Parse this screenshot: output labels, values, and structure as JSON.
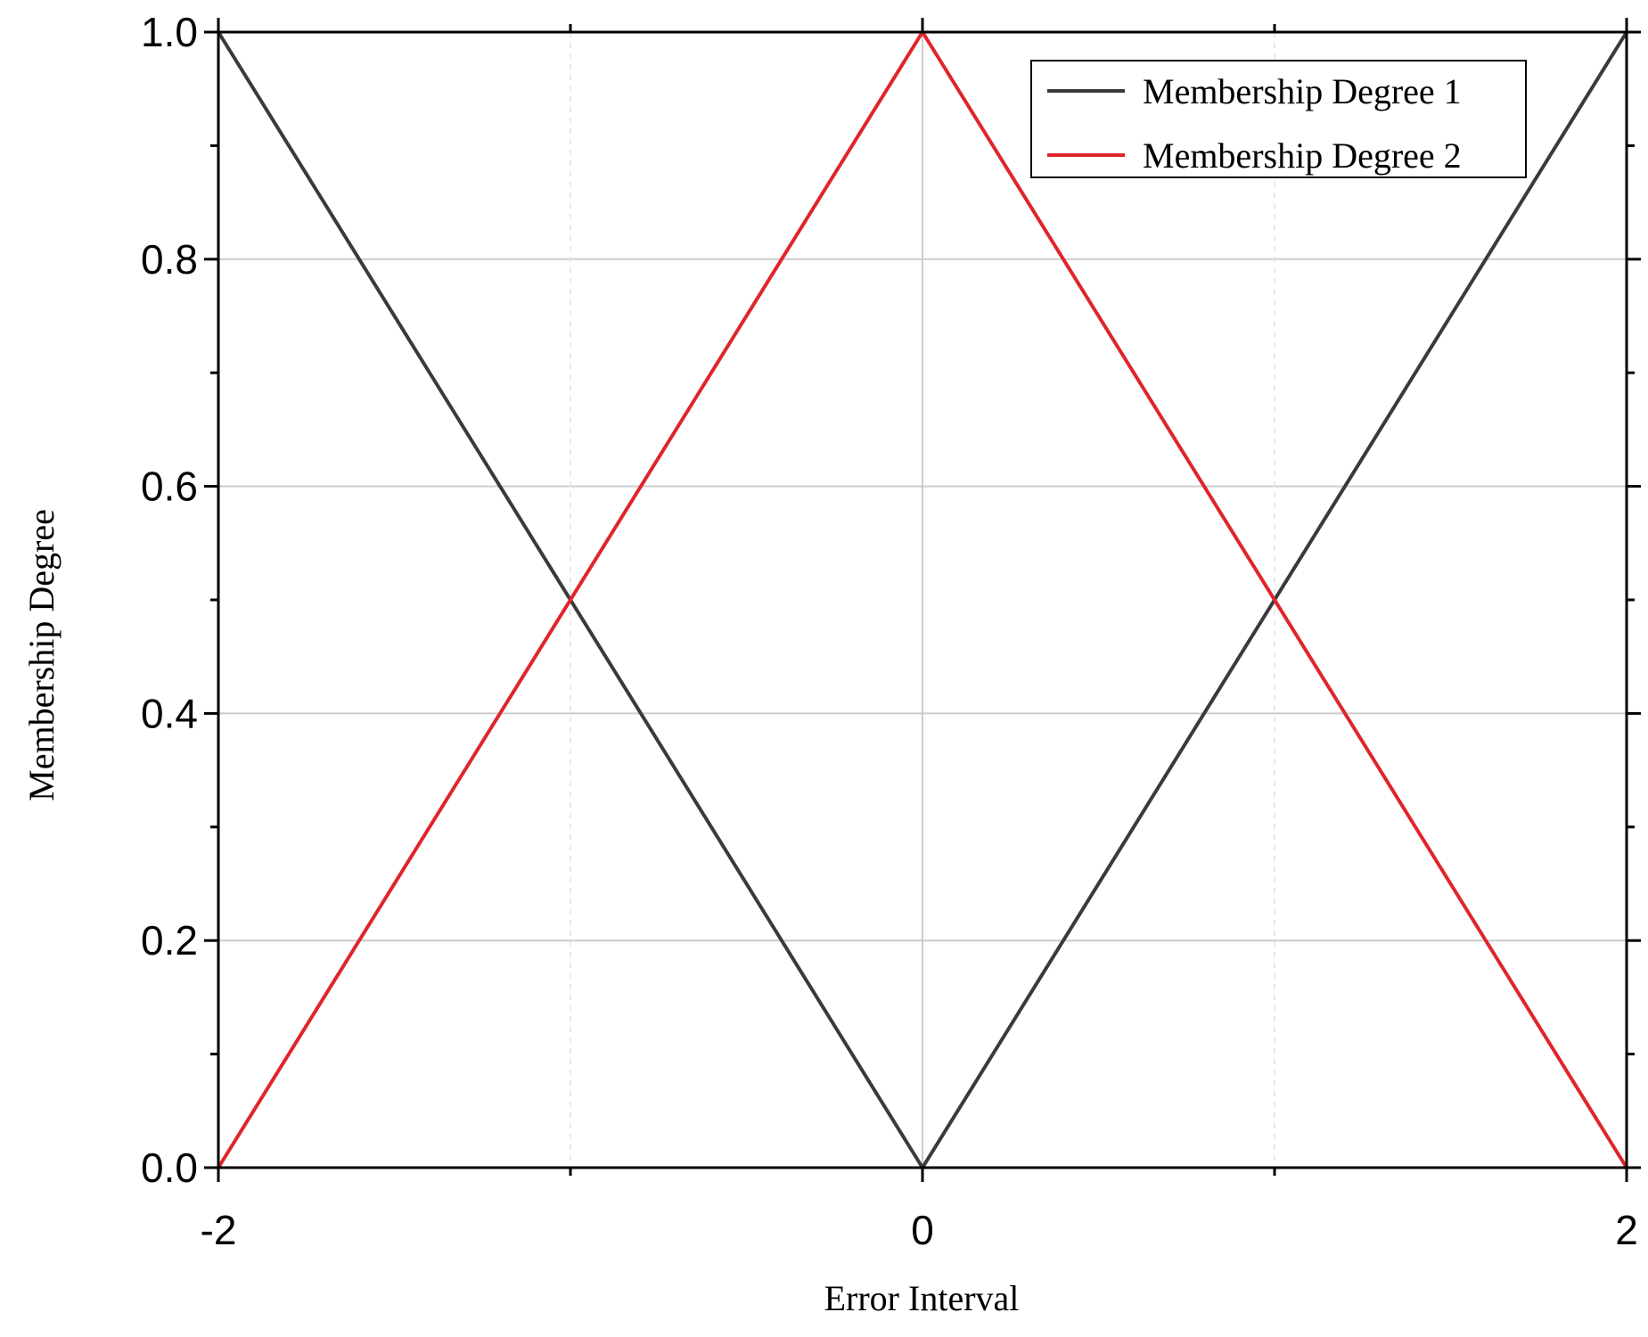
{
  "chart_data": {
    "type": "line",
    "title": "",
    "xlabel": "Error Interval",
    "ylabel": "Membership Degree",
    "xlim": [
      -2,
      2
    ],
    "ylim": [
      0,
      1
    ],
    "x_ticks": [
      -2,
      0,
      2
    ],
    "x_tick_labels": [
      "-2",
      "0",
      "2"
    ],
    "y_ticks": [
      0,
      0.2,
      0.4,
      0.6,
      0.8,
      1.0
    ],
    "y_tick_labels": [
      "0.0",
      "0.2",
      "0.4",
      "0.6",
      "0.8",
      "1.0"
    ],
    "grid": true,
    "legend_position": "top-right",
    "series": [
      {
        "name": "Membership Degree 1",
        "color": "#3a3a3a",
        "x": [
          -2,
          0,
          2
        ],
        "y": [
          1,
          0,
          1
        ]
      },
      {
        "name": "Membership Degree 2",
        "color": "#e0252a",
        "x": [
          -2,
          0,
          2
        ],
        "y": [
          0,
          1,
          0
        ]
      }
    ]
  }
}
